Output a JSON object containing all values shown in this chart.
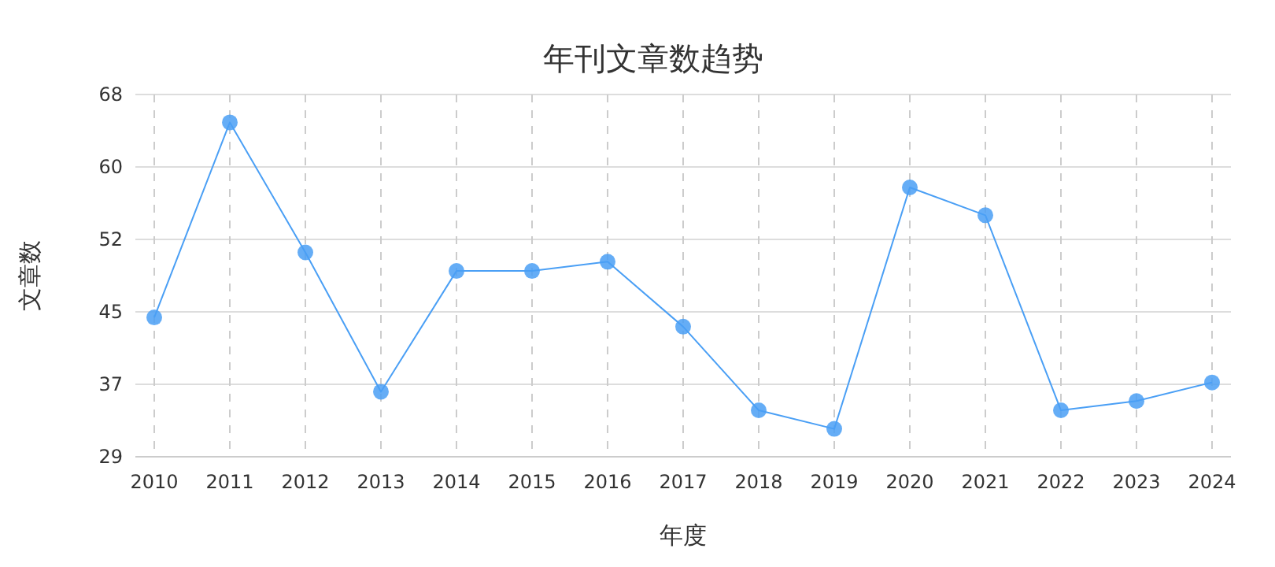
{
  "chart_data": {
    "type": "line",
    "title": "年刊文章数趋势",
    "xlabel": "年度",
    "ylabel": "文章数",
    "categories": [
      "2010",
      "2011",
      "2012",
      "2013",
      "2014",
      "2015",
      "2016",
      "2017",
      "2018",
      "2019",
      "2020",
      "2021",
      "2022",
      "2023",
      "2024"
    ],
    "series": [
      {
        "color": "#4a9ff5",
        "values": [
          44,
          65,
          51,
          36,
          49,
          49,
          50,
          43,
          34,
          32,
          58,
          55,
          34,
          35,
          37
        ]
      }
    ],
    "ylim": [
      29,
      68
    ],
    "yticks": [
      29,
      {
        "value": 36.8,
        "label": "37"
      },
      {
        "value": 44.6,
        "label": "45"
      },
      {
        "value": 52.4,
        "label": "52"
      },
      {
        "value": 60.2,
        "label": "60"
      },
      68
    ],
    "grid": true,
    "marker": "circle",
    "line_style": "solid"
  }
}
